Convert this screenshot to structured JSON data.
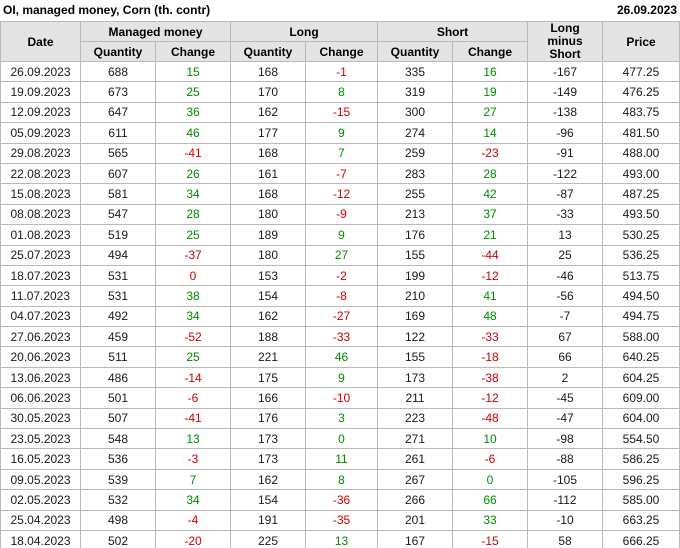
{
  "title": "OI, managed money, Corn (th. contr)",
  "report_date": "26.09.2023",
  "colors": {
    "positive": "#008b00",
    "negative": "#cc0000",
    "header_bg": "#e4e4e4",
    "border": "#b9b9b9"
  },
  "table": {
    "columns": {
      "date": "Date",
      "managed_money": "Managed money",
      "long": "Long",
      "short": "Short",
      "quantity": "Quantity",
      "change": "Change",
      "long_minus_short": "Long minus Short",
      "price": "Price"
    }
  },
  "rows": [
    {
      "date": "26.09.2023",
      "mm_qty": "688",
      "mm_chg": "15",
      "mm_chg_color": "positive",
      "long_qty": "168",
      "long_chg": "-1",
      "long_chg_color": "negative",
      "short_qty": "335",
      "short_chg": "16",
      "short_chg_color": "positive",
      "lms": "-167",
      "price": "477.25"
    },
    {
      "date": "19.09.2023",
      "mm_qty": "673",
      "mm_chg": "25",
      "mm_chg_color": "positive",
      "long_qty": "170",
      "long_chg": "8",
      "long_chg_color": "positive",
      "short_qty": "319",
      "short_chg": "19",
      "short_chg_color": "positive",
      "lms": "-149",
      "price": "476.25"
    },
    {
      "date": "12.09.2023",
      "mm_qty": "647",
      "mm_chg": "36",
      "mm_chg_color": "positive",
      "long_qty": "162",
      "long_chg": "-15",
      "long_chg_color": "negative",
      "short_qty": "300",
      "short_chg": "27",
      "short_chg_color": "positive",
      "lms": "-138",
      "price": "483.75"
    },
    {
      "date": "05.09.2023",
      "mm_qty": "611",
      "mm_chg": "46",
      "mm_chg_color": "positive",
      "long_qty": "177",
      "long_chg": "9",
      "long_chg_color": "positive",
      "short_qty": "274",
      "short_chg": "14",
      "short_chg_color": "positive",
      "lms": "-96",
      "price": "481.50"
    },
    {
      "date": "29.08.2023",
      "mm_qty": "565",
      "mm_chg": "-41",
      "mm_chg_color": "negative",
      "long_qty": "168",
      "long_chg": "7",
      "long_chg_color": "positive",
      "short_qty": "259",
      "short_chg": "-23",
      "short_chg_color": "negative",
      "lms": "-91",
      "price": "488.00"
    },
    {
      "date": "22.08.2023",
      "mm_qty": "607",
      "mm_chg": "26",
      "mm_chg_color": "positive",
      "long_qty": "161",
      "long_chg": "-7",
      "long_chg_color": "negative",
      "short_qty": "283",
      "short_chg": "28",
      "short_chg_color": "positive",
      "lms": "-122",
      "price": "493.00"
    },
    {
      "date": "15.08.2023",
      "mm_qty": "581",
      "mm_chg": "34",
      "mm_chg_color": "positive",
      "long_qty": "168",
      "long_chg": "-12",
      "long_chg_color": "negative",
      "short_qty": "255",
      "short_chg": "42",
      "short_chg_color": "positive",
      "lms": "-87",
      "price": "487.25"
    },
    {
      "date": "08.08.2023",
      "mm_qty": "547",
      "mm_chg": "28",
      "mm_chg_color": "positive",
      "long_qty": "180",
      "long_chg": "-9",
      "long_chg_color": "negative",
      "short_qty": "213",
      "short_chg": "37",
      "short_chg_color": "positive",
      "lms": "-33",
      "price": "493.50"
    },
    {
      "date": "01.08.2023",
      "mm_qty": "519",
      "mm_chg": "25",
      "mm_chg_color": "positive",
      "long_qty": "189",
      "long_chg": "9",
      "long_chg_color": "positive",
      "short_qty": "176",
      "short_chg": "21",
      "short_chg_color": "positive",
      "lms": "13",
      "price": "530.25"
    },
    {
      "date": "25.07.2023",
      "mm_qty": "494",
      "mm_chg": "-37",
      "mm_chg_color": "negative",
      "long_qty": "180",
      "long_chg": "27",
      "long_chg_color": "positive",
      "short_qty": "155",
      "short_chg": "-44",
      "short_chg_color": "negative",
      "lms": "25",
      "price": "536.25"
    },
    {
      "date": "18.07.2023",
      "mm_qty": "531",
      "mm_chg": "0",
      "mm_chg_color": "negative",
      "long_qty": "153",
      "long_chg": "-2",
      "long_chg_color": "negative",
      "short_qty": "199",
      "short_chg": "-12",
      "short_chg_color": "negative",
      "lms": "-46",
      "price": "513.75"
    },
    {
      "date": "11.07.2023",
      "mm_qty": "531",
      "mm_chg": "38",
      "mm_chg_color": "positive",
      "long_qty": "154",
      "long_chg": "-8",
      "long_chg_color": "negative",
      "short_qty": "210",
      "short_chg": "41",
      "short_chg_color": "positive",
      "lms": "-56",
      "price": "494.50"
    },
    {
      "date": "04.07.2023",
      "mm_qty": "492",
      "mm_chg": "34",
      "mm_chg_color": "positive",
      "long_qty": "162",
      "long_chg": "-27",
      "long_chg_color": "negative",
      "short_qty": "169",
      "short_chg": "48",
      "short_chg_color": "positive",
      "lms": "-7",
      "price": "494.75"
    },
    {
      "date": "27.06.2023",
      "mm_qty": "459",
      "mm_chg": "-52",
      "mm_chg_color": "negative",
      "long_qty": "188",
      "long_chg": "-33",
      "long_chg_color": "negative",
      "short_qty": "122",
      "short_chg": "-33",
      "short_chg_color": "negative",
      "lms": "67",
      "price": "588.00"
    },
    {
      "date": "20.06.2023",
      "mm_qty": "511",
      "mm_chg": "25",
      "mm_chg_color": "positive",
      "long_qty": "221",
      "long_chg": "46",
      "long_chg_color": "positive",
      "short_qty": "155",
      "short_chg": "-18",
      "short_chg_color": "negative",
      "lms": "66",
      "price": "640.25"
    },
    {
      "date": "13.06.2023",
      "mm_qty": "486",
      "mm_chg": "-14",
      "mm_chg_color": "negative",
      "long_qty": "175",
      "long_chg": "9",
      "long_chg_color": "positive",
      "short_qty": "173",
      "short_chg": "-38",
      "short_chg_color": "negative",
      "lms": "2",
      "price": "604.25"
    },
    {
      "date": "06.06.2023",
      "mm_qty": "501",
      "mm_chg": "-6",
      "mm_chg_color": "negative",
      "long_qty": "166",
      "long_chg": "-10",
      "long_chg_color": "negative",
      "short_qty": "211",
      "short_chg": "-12",
      "short_chg_color": "negative",
      "lms": "-45",
      "price": "609.00"
    },
    {
      "date": "30.05.2023",
      "mm_qty": "507",
      "mm_chg": "-41",
      "mm_chg_color": "negative",
      "long_qty": "176",
      "long_chg": "3",
      "long_chg_color": "positive",
      "short_qty": "223",
      "short_chg": "-48",
      "short_chg_color": "negative",
      "lms": "-47",
      "price": "604.00"
    },
    {
      "date": "23.05.2023",
      "mm_qty": "548",
      "mm_chg": "13",
      "mm_chg_color": "positive",
      "long_qty": "173",
      "long_chg": "0",
      "long_chg_color": "positive",
      "short_qty": "271",
      "short_chg": "10",
      "short_chg_color": "positive",
      "lms": "-98",
      "price": "554.50"
    },
    {
      "date": "16.05.2023",
      "mm_qty": "536",
      "mm_chg": "-3",
      "mm_chg_color": "negative",
      "long_qty": "173",
      "long_chg": "11",
      "long_chg_color": "positive",
      "short_qty": "261",
      "short_chg": "-6",
      "short_chg_color": "negative",
      "lms": "-88",
      "price": "586.25"
    },
    {
      "date": "09.05.2023",
      "mm_qty": "539",
      "mm_chg": "7",
      "mm_chg_color": "positive",
      "long_qty": "162",
      "long_chg": "8",
      "long_chg_color": "positive",
      "short_qty": "267",
      "short_chg": "0",
      "short_chg_color": "positive",
      "lms": "-105",
      "price": "596.25"
    },
    {
      "date": "02.05.2023",
      "mm_qty": "532",
      "mm_chg": "34",
      "mm_chg_color": "positive",
      "long_qty": "154",
      "long_chg": "-36",
      "long_chg_color": "negative",
      "short_qty": "266",
      "short_chg": "66",
      "short_chg_color": "positive",
      "lms": "-112",
      "price": "585.00"
    },
    {
      "date": "25.04.2023",
      "mm_qty": "498",
      "mm_chg": "-4",
      "mm_chg_color": "negative",
      "long_qty": "191",
      "long_chg": "-35",
      "long_chg_color": "negative",
      "short_qty": "201",
      "short_chg": "33",
      "short_chg_color": "positive",
      "lms": "-10",
      "price": "663.25"
    },
    {
      "date": "18.04.2023",
      "mm_qty": "502",
      "mm_chg": "-20",
      "mm_chg_color": "negative",
      "long_qty": "225",
      "long_chg": "13",
      "long_chg_color": "positive",
      "short_qty": "167",
      "short_chg": "-15",
      "short_chg_color": "negative",
      "lms": "58",
      "price": "666.25"
    }
  ]
}
